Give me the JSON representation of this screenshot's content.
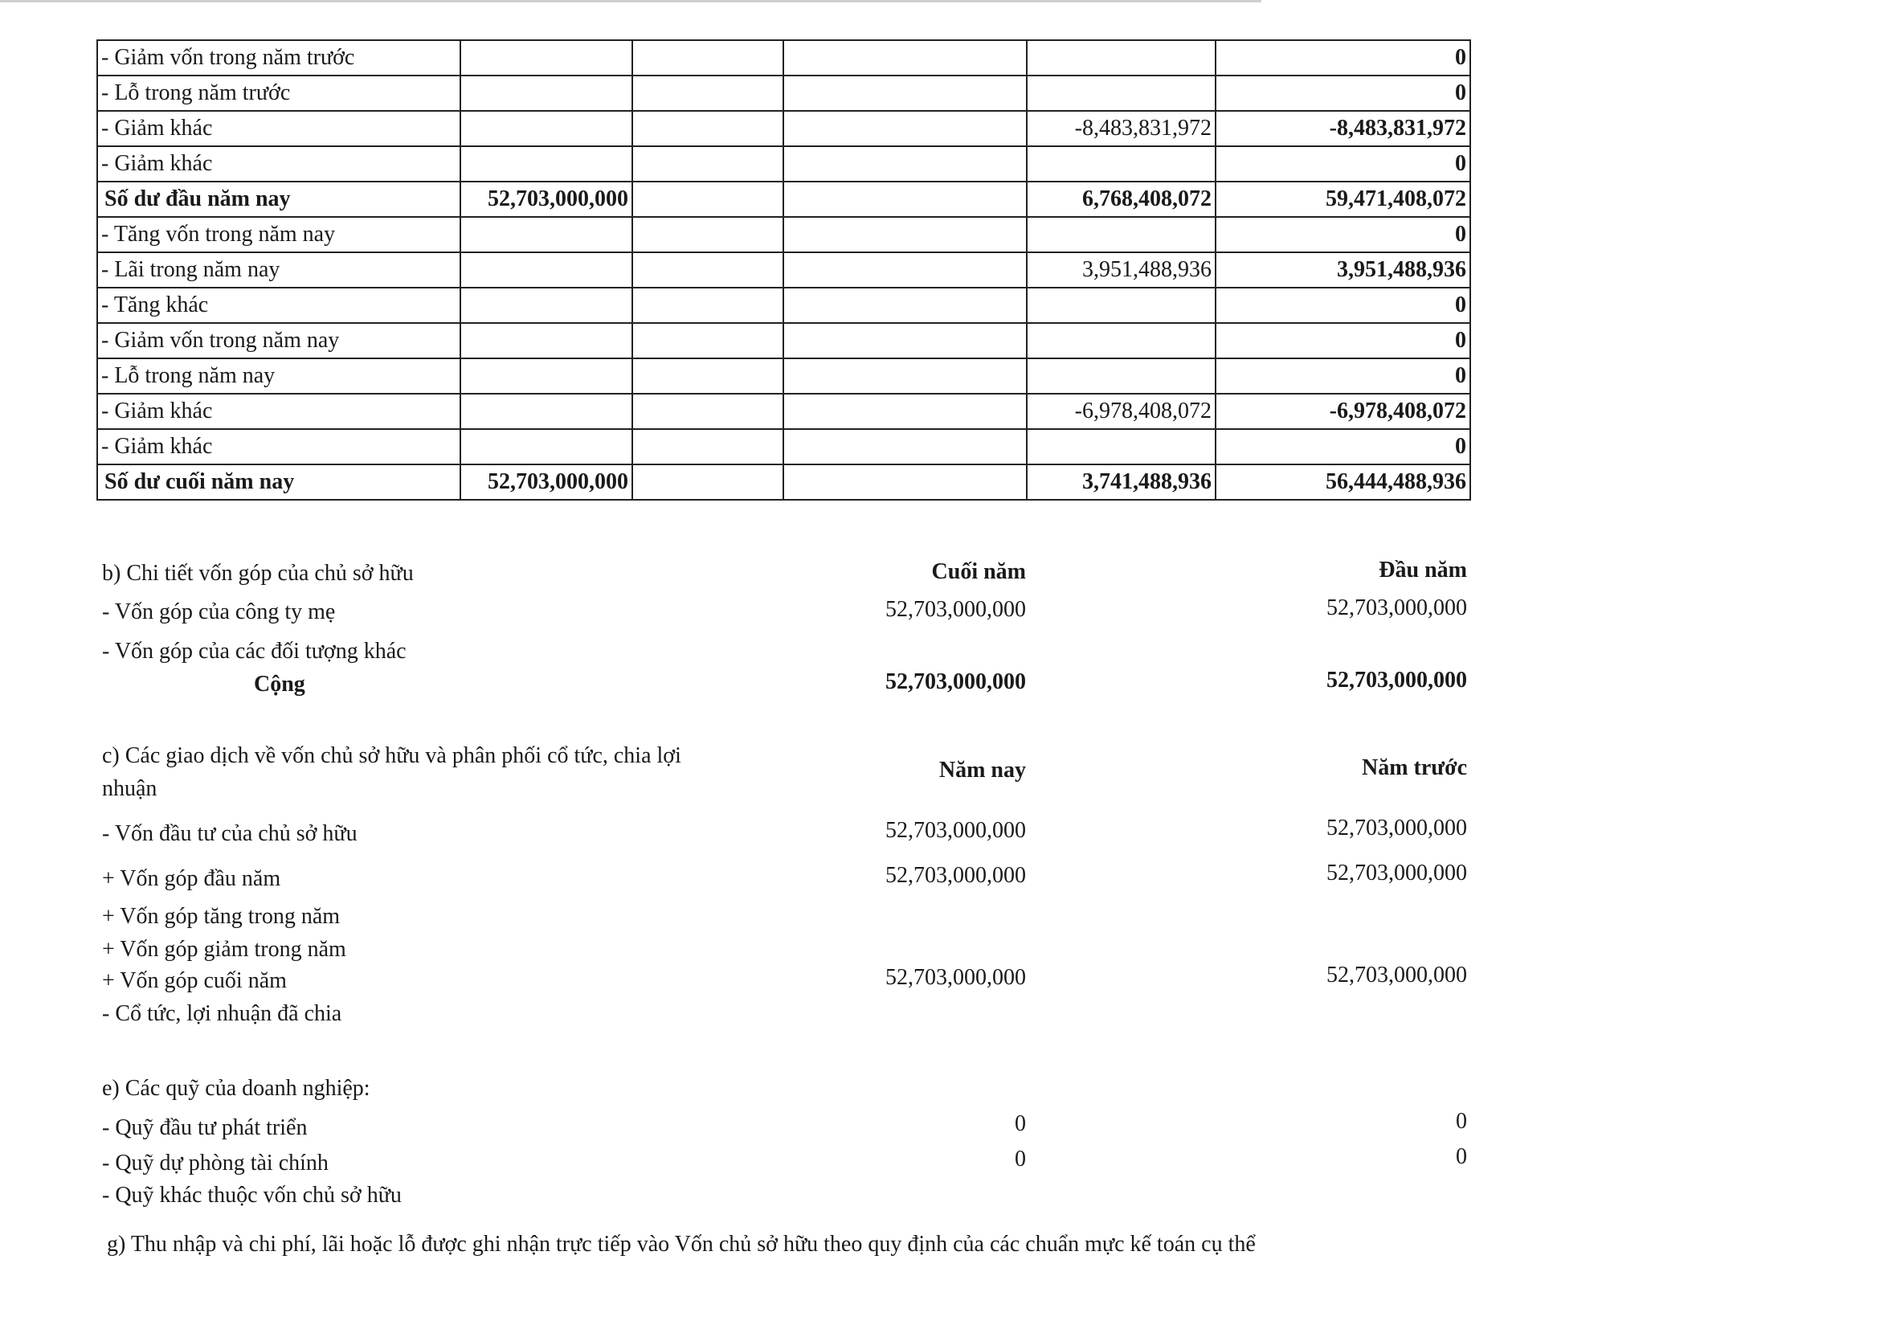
{
  "table": {
    "rows": [
      {
        "label": "- Giảm vốn trong năm trước",
        "c1": "",
        "c2": "",
        "c3": "",
        "c4": "",
        "total": "0",
        "bold": false
      },
      {
        "label": "- Lỗ trong năm trước",
        "c1": "",
        "c2": "",
        "c3": "",
        "c4": "",
        "total": "0",
        "bold": false
      },
      {
        "label": "- Giảm khác",
        "c1": "",
        "c2": "",
        "c3": "",
        "c4": "-8,483,831,972",
        "total": "-8,483,831,972",
        "bold": false
      },
      {
        "label": "- Giảm khác",
        "c1": "",
        "c2": "",
        "c3": "",
        "c4": "",
        "total": "0",
        "bold": false
      },
      {
        "label": "Số dư đầu năm nay",
        "c1": "52,703,000,000",
        "c2": "",
        "c3": "",
        "c4": "6,768,408,072",
        "total": "59,471,408,072",
        "bold": true
      },
      {
        "label": "- Tăng vốn trong năm nay",
        "c1": "",
        "c2": "",
        "c3": "",
        "c4": "",
        "total": "0",
        "bold": false
      },
      {
        "label": "- Lãi trong năm nay",
        "c1": "",
        "c2": "",
        "c3": "",
        "c4": "3,951,488,936",
        "total": "3,951,488,936",
        "bold": false
      },
      {
        "label": "- Tăng khác",
        "c1": "",
        "c2": "",
        "c3": "",
        "c4": "",
        "total": "0",
        "bold": false
      },
      {
        "label": "- Giảm vốn trong năm nay",
        "c1": "",
        "c2": "",
        "c3": "",
        "c4": "",
        "total": "0",
        "bold": false
      },
      {
        "label": "- Lỗ trong năm nay",
        "c1": "",
        "c2": "",
        "c3": "",
        "c4": "",
        "total": "0",
        "bold": false
      },
      {
        "label": "- Giảm khác",
        "c1": "",
        "c2": "",
        "c3": "",
        "c4": "-6,978,408,072",
        "total": "-6,978,408,072",
        "bold": false
      },
      {
        "label": "- Giảm khác",
        "c1": "",
        "c2": "",
        "c3": "",
        "c4": "",
        "total": "0",
        "bold": false
      },
      {
        "label": "Số dư cuối năm nay",
        "c1": "52,703,000,000",
        "c2": "",
        "c3": "",
        "c4": "3,741,488,936",
        "total": "56,444,488,936",
        "bold": true
      }
    ]
  },
  "section_b": {
    "title": "b) Chi tiết vốn góp của chủ sở hữu",
    "col1": "Cuối năm",
    "col2": "Đầu năm",
    "rows": [
      {
        "label": "- Vốn góp của công ty mẹ",
        "v1": "52,703,000,000",
        "v2": "52,703,000,000"
      },
      {
        "label": "- Vốn góp của các đối tượng khác",
        "v1": "",
        "v2": ""
      }
    ],
    "total": {
      "label": "Cộng",
      "v1": "52,703,000,000",
      "v2": "52,703,000,000"
    }
  },
  "section_c": {
    "title_line1": "c) Các giao dịch về vốn chủ sở hữu và phân phối cổ tức, chia lợi",
    "title_line2": "nhuận",
    "col1": "Năm nay",
    "col2": "Năm trước",
    "rows": [
      {
        "label": "- Vốn đầu tư của chủ sở hữu",
        "v1": "52,703,000,000",
        "v2": "52,703,000,000"
      },
      {
        "label": "+ Vốn góp đầu năm",
        "v1": "52,703,000,000",
        "v2": "52,703,000,000"
      },
      {
        "label": "+ Vốn góp tăng trong năm",
        "v1": "",
        "v2": ""
      },
      {
        "label": "+ Vốn góp giảm trong năm",
        "v1": "",
        "v2": ""
      },
      {
        "label": "+ Vốn góp cuối năm",
        "v1": "52,703,000,000",
        "v2": "52,703,000,000"
      },
      {
        "label": "- Cổ tức, lợi nhuận đã chia",
        "v1": "",
        "v2": ""
      }
    ]
  },
  "section_e": {
    "title": "e) Các quỹ của doanh nghiệp:",
    "rows": [
      {
        "label": "- Quỹ đầu tư phát triển",
        "v1": "0",
        "v2": "0"
      },
      {
        "label": "- Quỹ dự phòng tài chính",
        "v1": "0",
        "v2": "0"
      },
      {
        "label": "- Quỹ khác thuộc vốn chủ sở hữu",
        "v1": "",
        "v2": ""
      }
    ]
  },
  "section_g": {
    "title": "g) Thu nhập và chi phí, lãi hoặc lỗ được ghi nhận trực tiếp vào Vốn chủ sở hữu theo quy định của các chuẩn mực kế toán cụ thể"
  }
}
